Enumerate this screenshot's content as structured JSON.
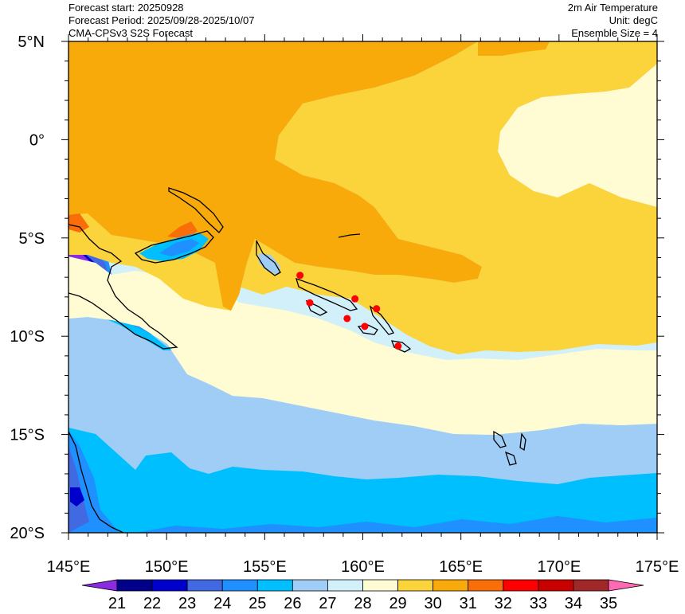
{
  "header": {
    "left": [
      "Forecast start: 20250928",
      "Forecast Period: 2025/09/28-2025/10/07",
      "CMA-CPSv3 S2S Forecast"
    ],
    "right": [
      "2m Air Temperature",
      "Unit: degC",
      "Ensemble Size = 4"
    ]
  },
  "map": {
    "lon_range": [
      145,
      175
    ],
    "lat_range": [
      -20,
      5
    ],
    "lon_ticks": [
      "145°E",
      "150°E",
      "155°E",
      "160°E",
      "165°E",
      "170°E",
      "175°E"
    ],
    "lat_ticks": [
      "5°N",
      "0°",
      "5°S",
      "10°S",
      "15°S",
      "20°S"
    ]
  },
  "colorbar": {
    "labels": [
      "21",
      "22",
      "23",
      "24",
      "25",
      "26",
      "27",
      "28",
      "29",
      "30",
      "31",
      "32",
      "33",
      "34",
      "35"
    ],
    "colors": {
      "lt21": "#8a2be2",
      "b21_22": "#00008b",
      "b22_23": "#0000cd",
      "b23_24": "#4169e1",
      "b24_25": "#1e90ff",
      "b25_26": "#00bfff",
      "b26_27": "#a0cdf5",
      "b27_28": "#d2f0fa",
      "b28_29": "#fffbd2",
      "b29_30": "#fbd33a",
      "b30_31": "#f8aa0a",
      "b31_32": "#fa6e0a",
      "b32_33": "#ff0000",
      "b33_34": "#c80000",
      "b34_35": "#a02828",
      "gt35": "#ff69b4"
    }
  },
  "markers": {
    "color": "#ff0000",
    "points": [
      {
        "lon": 156.8,
        "lat": -6.9
      },
      {
        "lon": 157.3,
        "lat": -8.3
      },
      {
        "lon": 159.6,
        "lat": -8.1
      },
      {
        "lon": 160.7,
        "lat": -8.6
      },
      {
        "lon": 159.2,
        "lat": -9.1
      },
      {
        "lon": 160.1,
        "lat": -9.5
      },
      {
        "lon": 161.8,
        "lat": -10.5
      }
    ]
  }
}
